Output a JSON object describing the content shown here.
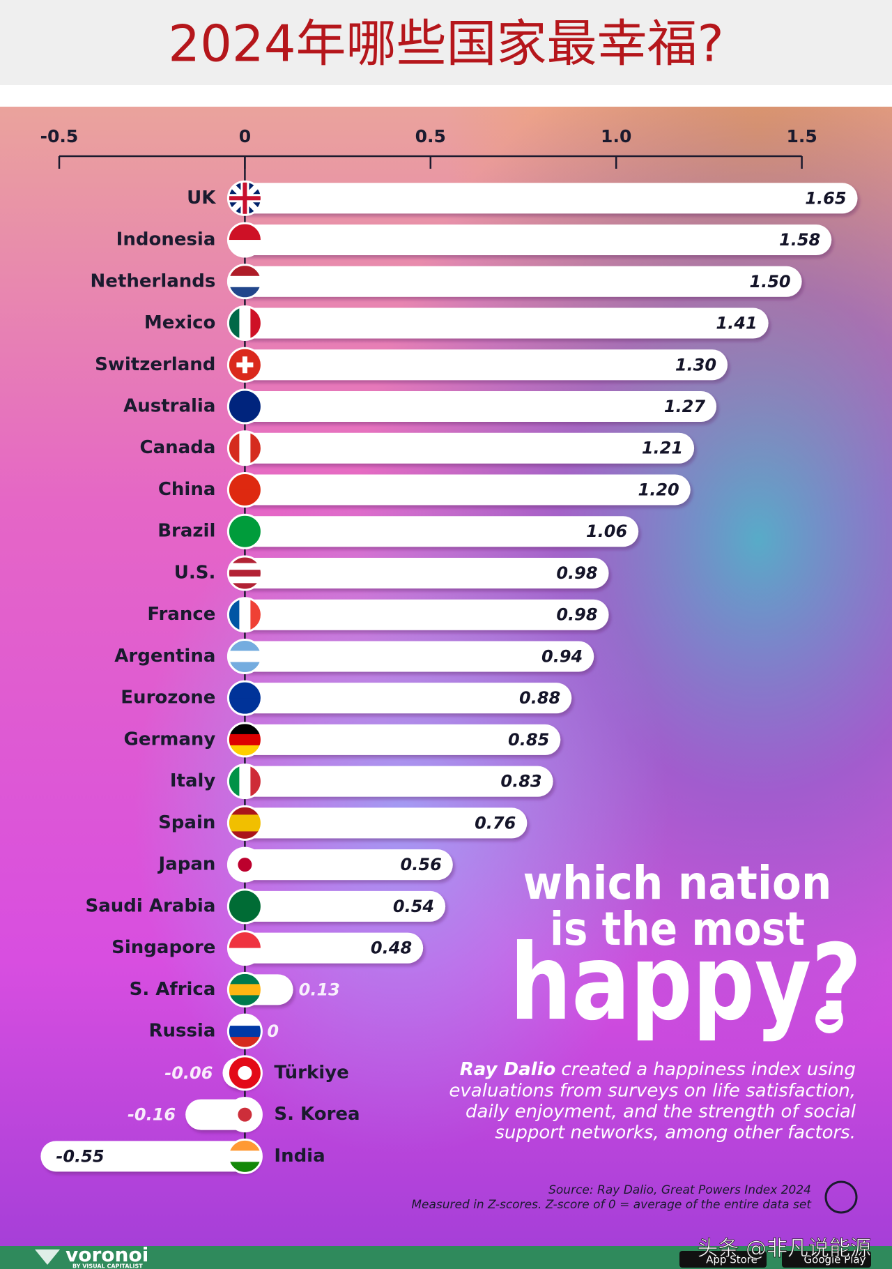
{
  "chart_data": {
    "type": "bar",
    "title": "2024年哪些国家最幸福?",
    "categories": [
      "UK",
      "Indonesia",
      "Netherlands",
      "Mexico",
      "Switzerland",
      "Australia",
      "Canada",
      "China",
      "Brazil",
      "U.S.",
      "France",
      "Argentina",
      "Eurozone",
      "Germany",
      "Italy",
      "Spain",
      "Japan",
      "Saudi Arabia",
      "Singapore",
      "S. Africa",
      "Russia",
      "Türkiye",
      "S. Korea",
      "India"
    ],
    "values": [
      1.65,
      1.58,
      1.5,
      1.41,
      1.3,
      1.27,
      1.21,
      1.2,
      1.06,
      0.98,
      0.98,
      0.94,
      0.88,
      0.85,
      0.83,
      0.76,
      0.56,
      0.54,
      0.48,
      0.13,
      0,
      -0.06,
      -0.16,
      -0.55
    ],
    "value_labels": [
      "1.65",
      "1.58",
      "1.50",
      "1.41",
      "1.30",
      "1.27",
      "1.21",
      "1.20",
      "1.06",
      "0.98",
      "0.98",
      "0.94",
      "0.88",
      "0.85",
      "0.83",
      "0.76",
      "0.56",
      "0.54",
      "0.48",
      "0.13",
      "0",
      "-0.06",
      "-0.16",
      "-0.55"
    ],
    "color": "#ffffff",
    "xlim": [
      -0.5,
      1.5
    ],
    "xticks": [
      -0.5,
      0,
      0.5,
      {
        "value": 1,
        "label": "1.0"
      },
      1.5
    ],
    "headline": [
      "which nation",
      "is the most",
      "happy?"
    ],
    "author": "Ray Dalio",
    "description_lines": [
      "created a happiness index using",
      "evaluations from surveys on life satisfaction,",
      "daily enjoyment, and the strength of social",
      "support networks, among other factors."
    ],
    "source": "Source: Ray Dalio, Great Powers Index 2024",
    "note": "Measured in Z-scores. Z-score of 0 = average of the entire data set",
    "brand": "voronoi",
    "brand_sub": "BY VISUAL CAPITALIST",
    "watermark": "头条 @非凡说能源",
    "stores": [
      "App Store",
      "Google Play"
    ]
  }
}
